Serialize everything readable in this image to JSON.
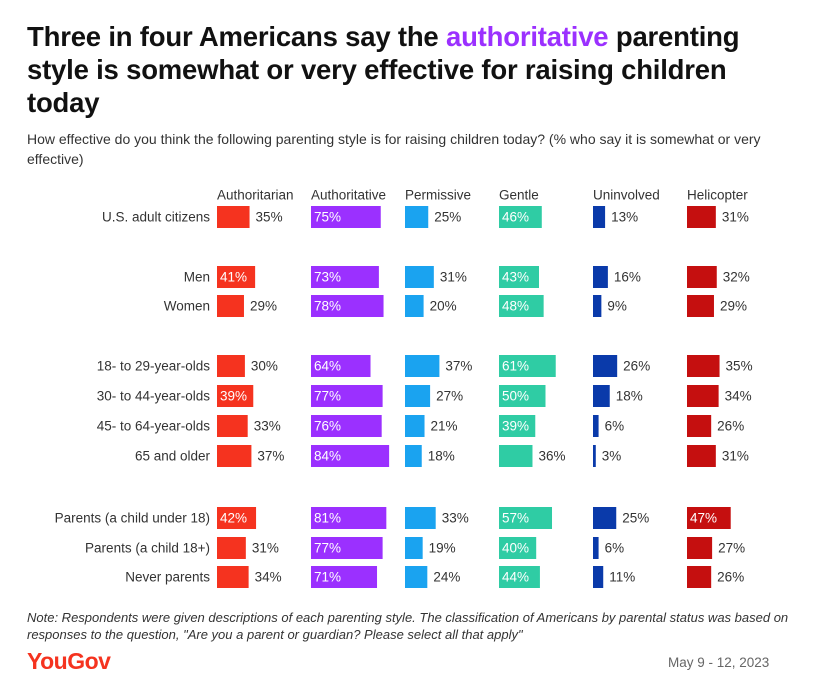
{
  "header": {
    "title_part1": "Three in four Americans say the ",
    "title_highlight": "authoritative",
    "title_part2": " parenting style is somewhat or very effective for raising children today",
    "subtitle": "How effective do you think the following parenting style is for raising children today? (% who say it is somewhat or very effective)"
  },
  "chart_data": {
    "type": "bar",
    "title": "Three in four Americans say the authoritative parenting style is somewhat or very effective for raising children today",
    "subtitle": "How effective do you think the following parenting style is for raising children today? (% who say it is somewhat or very effective)",
    "unit": "%",
    "categories": [
      "U.S. adult citizens",
      "Men",
      "Women",
      "18- to 29-year-olds",
      "30- to 44-year-olds",
      "45- to 64-year-olds",
      "65 and older",
      "Parents (a child under 18)",
      "Parents (a child 18+)",
      "Never parents"
    ],
    "groups": [
      [
        0
      ],
      [
        1,
        2
      ],
      [
        3,
        4,
        5,
        6
      ],
      [
        7,
        8,
        9
      ]
    ],
    "series": [
      {
        "name": "Authoritarian",
        "color": "#f5331f",
        "values": [
          35,
          41,
          29,
          30,
          39,
          33,
          37,
          42,
          31,
          34
        ]
      },
      {
        "name": "Authoritative",
        "color": "#9b30ff",
        "values": [
          75,
          73,
          78,
          64,
          77,
          76,
          84,
          81,
          77,
          71
        ]
      },
      {
        "name": "Permissive",
        "color": "#1aa3f0",
        "values": [
          25,
          31,
          20,
          37,
          27,
          21,
          18,
          33,
          19,
          24
        ]
      },
      {
        "name": "Gentle",
        "color": "#2fcca4",
        "values": [
          46,
          43,
          48,
          61,
          50,
          39,
          36,
          57,
          40,
          44
        ]
      },
      {
        "name": "Uninvolved",
        "color": "#0a3aaa",
        "values": [
          13,
          16,
          9,
          26,
          18,
          6,
          3,
          25,
          6,
          11
        ]
      },
      {
        "name": "Helicopter",
        "color": "#c50f0f",
        "values": [
          31,
          32,
          29,
          35,
          34,
          26,
          31,
          47,
          27,
          26
        ]
      }
    ]
  },
  "footer": {
    "note": "Note: Respondents were given descriptions of each parenting style. The classification of Americans by parental status was based on responses to the question, \"Are you a parent or guardian? Please select all that apply\"",
    "brand": "YouGov",
    "date": "May 9 - 12, 2023"
  }
}
